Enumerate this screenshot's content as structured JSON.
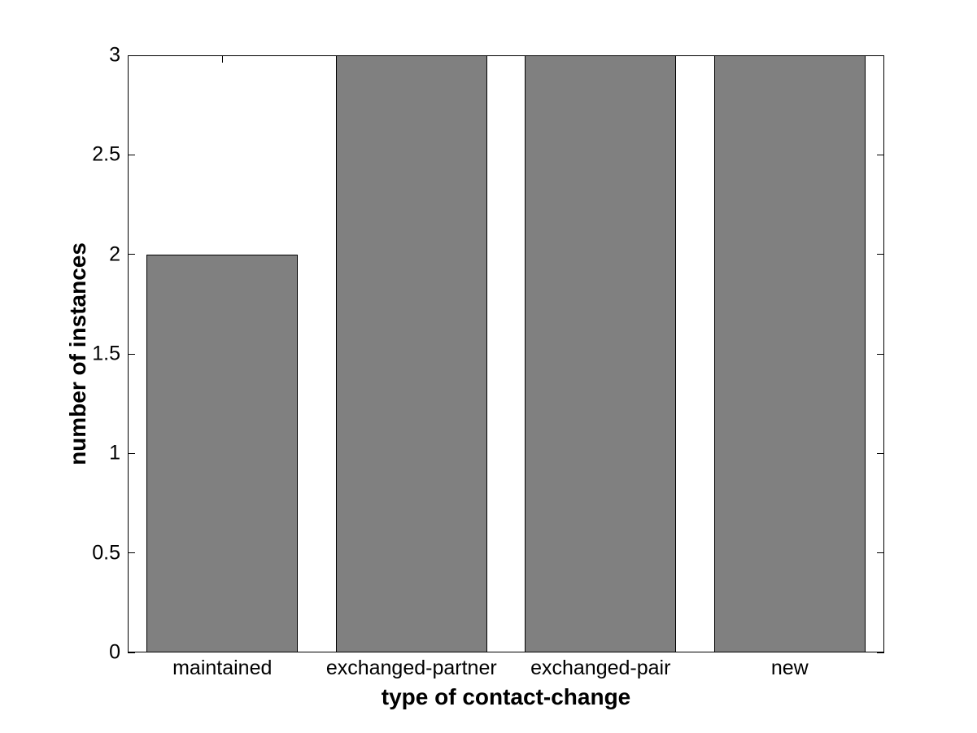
{
  "figure": {
    "background_color": "#ffffff"
  },
  "chart_data": {
    "type": "bar",
    "title": "",
    "xlabel": "type of contact-change",
    "ylabel": "number of instances",
    "categories": [
      "maintained",
      "exchanged-partner",
      "exchanged-pair",
      "new"
    ],
    "values": [
      2,
      3,
      3,
      3
    ],
    "ylim": [
      0,
      3
    ],
    "yticks": [
      0,
      0.5,
      1,
      1.5,
      2,
      2.5,
      3
    ],
    "ytick_labels": [
      "0",
      "0.5",
      "1",
      "1.5",
      "2",
      "2.5",
      "3"
    ],
    "bar_width_fraction": 0.8,
    "bar_color": "#808080",
    "bar_edge_color": "#000000",
    "axis_color": "#000000",
    "grid": false,
    "legend": null
  }
}
